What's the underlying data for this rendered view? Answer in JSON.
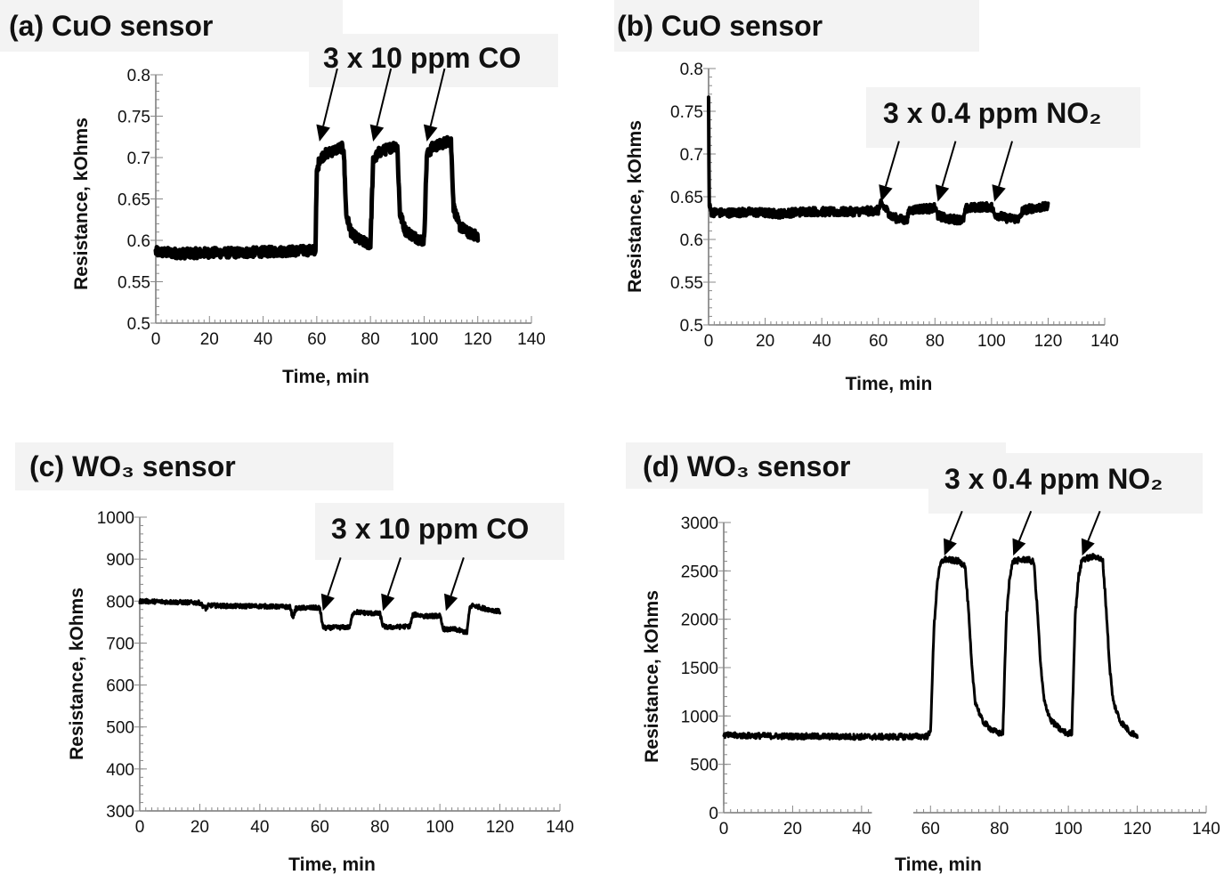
{
  "chart_data": [
    {
      "id": "a",
      "type": "line",
      "title": "(a) CuO sensor",
      "annotation": "3 x 10 ppm CO",
      "xlabel": "Time, min",
      "ylabel": "Resistance, kOhms",
      "xlim": [
        0,
        140
      ],
      "ylim": [
        0.5,
        0.8
      ],
      "xticks": [
        0,
        20,
        40,
        60,
        80,
        100,
        120,
        140
      ],
      "yticks": [
        0.5,
        0.55,
        0.6,
        0.65,
        0.7,
        0.75,
        0.8
      ],
      "ytick_labels": [
        "0.5",
        "0.55",
        "0.6",
        "0.65",
        "0.7",
        "0.75",
        "0.8"
      ],
      "arrow_x": [
        61,
        81,
        101
      ],
      "arrow_y": 0.715,
      "series": [
        {
          "x": [
            0,
            10,
            20,
            30,
            40,
            50,
            59.5,
            60,
            61,
            63,
            66,
            69,
            70,
            71,
            73,
            76,
            79,
            80,
            81,
            83,
            86,
            89,
            90,
            91,
            93,
            96,
            99,
            100,
            101,
            103,
            106,
            109,
            110,
            111,
            113,
            116,
            119,
            120
          ],
          "y": [
            0.586,
            0.584,
            0.585,
            0.585,
            0.586,
            0.587,
            0.588,
            0.68,
            0.698,
            0.704,
            0.708,
            0.712,
            0.712,
            0.63,
            0.608,
            0.6,
            0.596,
            0.595,
            0.695,
            0.706,
            0.71,
            0.714,
            0.714,
            0.632,
            0.612,
            0.605,
            0.6,
            0.6,
            0.702,
            0.712,
            0.716,
            0.72,
            0.72,
            0.64,
            0.618,
            0.61,
            0.606,
            0.605
          ],
          "noise": 0.006
        }
      ]
    },
    {
      "id": "b",
      "type": "line",
      "title": "(b) CuO sensor",
      "annotation": "3 x 0.4 ppm NO₂",
      "xlabel": "Time, min",
      "ylabel": "Resistance, kOhms",
      "xlim": [
        0,
        140
      ],
      "ylim": [
        0.5,
        0.8
      ],
      "xticks": [
        0,
        20,
        40,
        60,
        80,
        100,
        120,
        140
      ],
      "yticks": [
        0.5,
        0.55,
        0.6,
        0.65,
        0.7,
        0.75,
        0.8
      ],
      "ytick_labels": [
        "0.5",
        "0.55",
        "0.6",
        "0.65",
        "0.7",
        "0.75",
        "0.8"
      ],
      "arrow_x": [
        61,
        81,
        101
      ],
      "arrow_y": 0.64,
      "series": [
        {
          "x": [
            0,
            0.2,
            1,
            5,
            15,
            25,
            35,
            45,
            55,
            60,
            61,
            63,
            65,
            70,
            71,
            75,
            79,
            80,
            81,
            85,
            90,
            91,
            95,
            99,
            100,
            101,
            105,
            110,
            111,
            115,
            119,
            120
          ],
          "y": [
            0.765,
            0.64,
            0.632,
            0.631,
            0.632,
            0.63,
            0.633,
            0.632,
            0.633,
            0.634,
            0.642,
            0.634,
            0.626,
            0.622,
            0.634,
            0.636,
            0.636,
            0.637,
            0.628,
            0.624,
            0.623,
            0.636,
            0.638,
            0.638,
            0.638,
            0.63,
            0.625,
            0.624,
            0.634,
            0.637,
            0.638,
            0.638
          ],
          "noise": 0.005
        }
      ]
    },
    {
      "id": "c",
      "type": "line",
      "title": "(c) WO₃ sensor",
      "annotation": "3 x 10 ppm CO",
      "xlabel": "Time, min",
      "ylabel": "Resistance, kOhms",
      "xlim": [
        0,
        140
      ],
      "ylim": [
        300,
        1000
      ],
      "xticks": [
        0,
        20,
        40,
        60,
        80,
        100,
        120,
        140
      ],
      "yticks": [
        300,
        400,
        500,
        600,
        700,
        800,
        900,
        1000
      ],
      "ytick_labels": [
        "300",
        "400",
        "500",
        "600",
        "700",
        "800",
        "900",
        "1000"
      ],
      "arrow_x": [
        61,
        81,
        102
      ],
      "arrow_y": 768,
      "series": [
        {
          "x": [
            0,
            10,
            20,
            22,
            23,
            30,
            40,
            50,
            51,
            52,
            53,
            55,
            60,
            61,
            62,
            65,
            70,
            71,
            72,
            75,
            80,
            81,
            82,
            85,
            90,
            91,
            92,
            95,
            100,
            101,
            102,
            105,
            109,
            110,
            111,
            115,
            120
          ],
          "y": [
            800,
            798,
            796,
            782,
            790,
            788,
            788,
            786,
            762,
            782,
            783,
            784,
            784,
            738,
            736,
            737,
            738,
            772,
            774,
            772,
            770,
            742,
            738,
            738,
            740,
            766,
            768,
            764,
            765,
            735,
            732,
            733,
            725,
            785,
            790,
            782,
            775
          ],
          "noise": 5
        }
      ]
    },
    {
      "id": "d",
      "type": "line",
      "title": "(d) WO₃ sensor",
      "annotation": "3 x 0.4 ppm NO₂",
      "xlabel": "Time, min",
      "ylabel": "Resistance, kOhms",
      "xlim": [
        0,
        140
      ],
      "ylim": [
        0,
        3000
      ],
      "xticks": [
        0,
        20,
        40,
        60,
        80,
        100,
        120,
        140
      ],
      "yticks": [
        0,
        500,
        1000,
        1500,
        2000,
        2500,
        3000
      ],
      "ytick_labels": [
        "0",
        "500",
        "1000",
        "1500",
        "2000",
        "2500",
        "3000"
      ],
      "arrow_x": [
        64,
        84,
        104
      ],
      "arrow_y": 2620,
      "series": [
        {
          "x": [
            0,
            10,
            20,
            30,
            40,
            50,
            59,
            60,
            61,
            62,
            63,
            64,
            68,
            70,
            71,
            72,
            73,
            75,
            78,
            80,
            81,
            82,
            83,
            84,
            88,
            90,
            91,
            92,
            93,
            95,
            98,
            100,
            101,
            102,
            103,
            104,
            108,
            110,
            111,
            112,
            113,
            115,
            118,
            120
          ],
          "y": [
            800,
            795,
            790,
            788,
            785,
            785,
            790,
            830,
            1900,
            2400,
            2580,
            2620,
            2600,
            2560,
            2100,
            1500,
            1150,
            950,
            850,
            820,
            830,
            2000,
            2450,
            2600,
            2620,
            2590,
            2100,
            1500,
            1150,
            950,
            850,
            815,
            830,
            2050,
            2450,
            2620,
            2650,
            2600,
            2100,
            1500,
            1150,
            950,
            830,
            800
          ],
          "noise": 30
        }
      ]
    }
  ]
}
